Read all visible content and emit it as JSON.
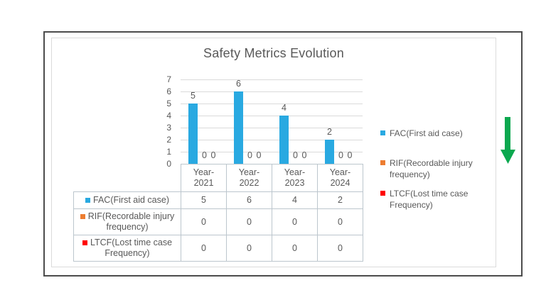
{
  "chart_data": {
    "type": "bar",
    "title": "Safety Metrics Evolution",
    "categories": [
      "Year-2021",
      "Year-2022",
      "Year-2023",
      "Year-2024"
    ],
    "series": [
      {
        "name": "FAC(First aid case)",
        "color": "#29A9E1",
        "values": [
          5,
          6,
          4,
          2
        ]
      },
      {
        "name": "RIF(Recordable injury frequency)",
        "color": "#ED7D31",
        "values": [
          0,
          0,
          0,
          0
        ]
      },
      {
        "name": "LTCF(Lost time case Frequency)",
        "color": "#FF0000",
        "values": [
          0,
          0,
          0,
          0
        ]
      }
    ],
    "ylim": [
      0,
      7
    ],
    "yticks": [
      0,
      1,
      2,
      3,
      4,
      5,
      6,
      7
    ],
    "grid": true,
    "legend_position": "right",
    "has_data_table": true,
    "data_labels": true,
    "text_color": "#595959",
    "gridline_color": "#DADADA",
    "table_border_color": "#BCC6CD"
  },
  "annotations": {
    "down_arrow": {
      "direction": "down",
      "color": "#0BA84F"
    }
  }
}
